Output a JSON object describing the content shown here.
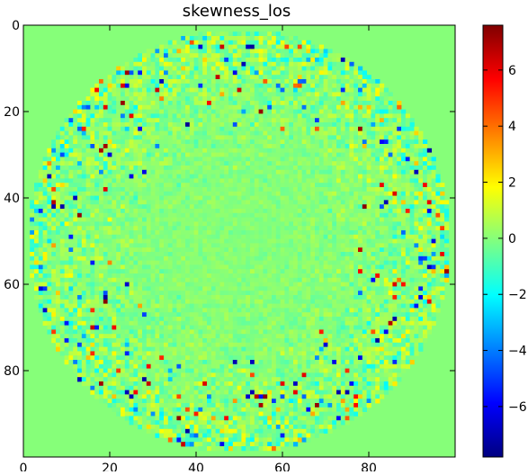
{
  "chart_data": {
    "type": "heatmap",
    "title": "skewness_los",
    "xlabel": "",
    "ylabel": "",
    "x_ticks": [
      "0",
      "20",
      "40",
      "60",
      "80"
    ],
    "y_ticks": [
      "0",
      "20",
      "40",
      "60",
      "80"
    ],
    "xlim": [
      0,
      99
    ],
    "ylim": [
      0,
      99
    ],
    "colorbar": {
      "ticks": [
        "−6",
        "−4",
        "−2",
        "0",
        "2",
        "4",
        "6"
      ],
      "range": [
        -7.8,
        7.6
      ],
      "colormap": "jet"
    },
    "background_value": 0,
    "pattern": "ring of higher-magnitude values near outer edge of circular region, low-magnitude concentric ripples in center"
  }
}
